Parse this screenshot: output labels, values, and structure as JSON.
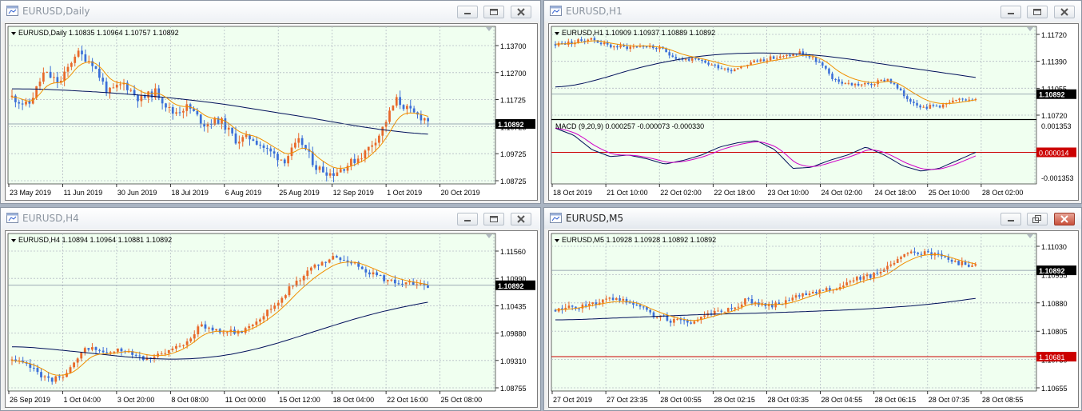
{
  "colors": {
    "bull": "#e8692a",
    "bear": "#3b6fd8",
    "ma_fast": "#f09000",
    "ma_slow": "#00105a",
    "macd_main": "#00105a",
    "macd_signal": "#d000c8",
    "zero_line": "#cc0000",
    "grid": "#b4bcc4",
    "plot_bg": "#f0fff0"
  },
  "windows": [
    {
      "id": "daily",
      "title": "EURUSD,Daily",
      "info": "EURUSD,Daily  1.10835 1.10964 1.10757 1.10892",
      "price_labels": [
        "1.13700",
        "1.12700",
        "1.11725",
        "1.10725",
        "1.09725",
        "1.08725"
      ],
      "current_price": "1.10892",
      "time_labels": [
        "23 May 2019",
        "11 Jun 2019",
        "30 Jun 2019",
        "18 Jul 2019",
        "6 Aug 2019",
        "25 Aug 2019",
        "12 Sep 2019",
        "1 Oct 2019",
        "20 Oct 2019"
      ],
      "active": false
    },
    {
      "id": "h1",
      "title": "EURUSD,H1",
      "info": "EURUSD,H1  1.10909 1.10937 1.10889 1.10892",
      "price_labels": [
        "1.11720",
        "1.11390",
        "1.11055",
        "1.10720"
      ],
      "current_price": "1.10892",
      "time_labels": [
        "18 Oct 2019",
        "21 Oct 10:00",
        "22 Oct 02:00",
        "22 Oct 18:00",
        "23 Oct 10:00",
        "24 Oct 02:00",
        "24 Oct 18:00",
        "25 Oct 10:00",
        "28 Oct 02:00"
      ],
      "macd_info": "MACD (9,20,9) 0.000257 -0.000073 -0.000330",
      "macd_labels": [
        "0.001353",
        "-0.001353"
      ],
      "macd_current": "0.000014",
      "active": false
    },
    {
      "id": "h4",
      "title": "EURUSD,H4",
      "info": "EURUSD,H4  1.10894 1.10964 1.10881 1.10892",
      "price_labels": [
        "1.11560",
        "1.10990",
        "1.10435",
        "1.09880",
        "1.09310",
        "1.08755"
      ],
      "current_price": "1.10892",
      "time_labels": [
        "26 Sep 2019",
        "1 Oct 04:00",
        "3 Oct 20:00",
        "8 Oct 08:00",
        "11 Oct 00:00",
        "15 Oct 12:00",
        "18 Oct 04:00",
        "22 Oct 16:00",
        "25 Oct 08:00"
      ],
      "active": false
    },
    {
      "id": "m5",
      "title": "EURUSD,M5",
      "info": "EURUSD,M5  1.10928 1.10928 1.10892 1.10892",
      "price_labels": [
        "1.11030",
        "1.10955",
        "1.10880",
        "1.10805",
        "1.10730",
        "1.10655"
      ],
      "current_price": "1.10892",
      "alert_price": "1.10681",
      "time_labels": [
        "27 Oct 2019",
        "27 Oct 23:35",
        "28 Oct 00:55",
        "28 Oct 02:15",
        "28 Oct 03:35",
        "28 Oct 04:55",
        "28 Oct 06:15",
        "28 Oct 07:35",
        "28 Oct 08:55"
      ],
      "active": true
    }
  ]
}
